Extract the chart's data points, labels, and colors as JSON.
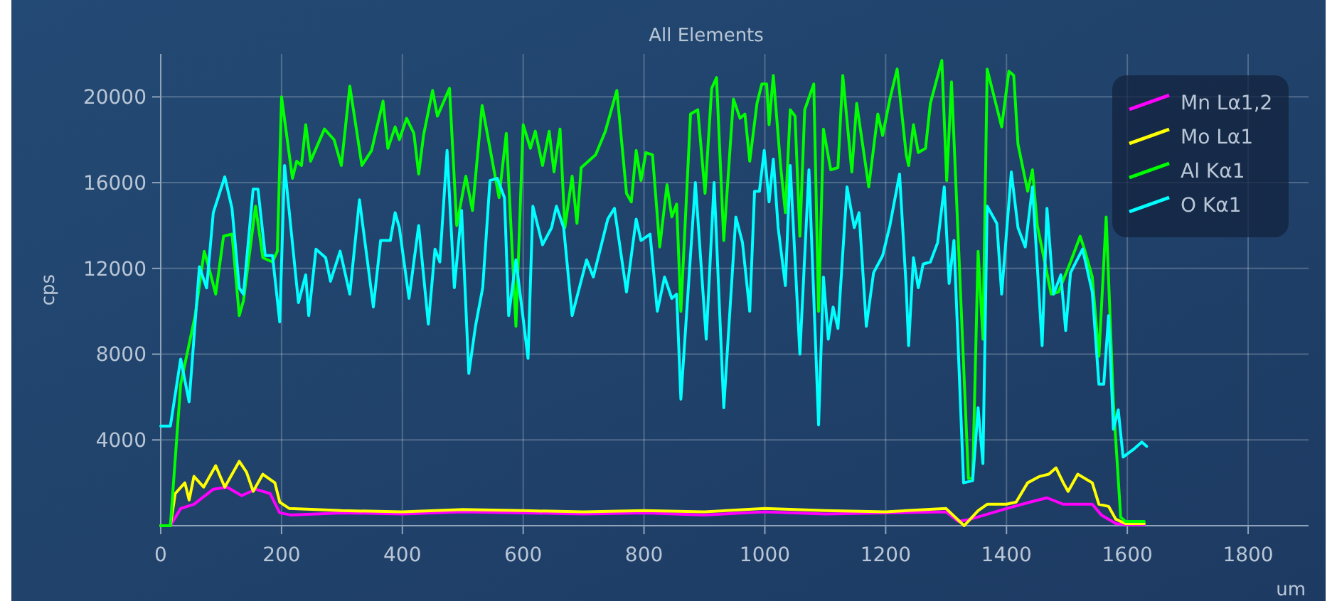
{
  "chart_data": {
    "type": "line",
    "title": "All Elements",
    "xlabel": "um",
    "ylabel": "cps",
    "xlim": [
      0,
      1900
    ],
    "xticks": [
      0,
      200,
      400,
      600,
      800,
      1000,
      1200,
      1400,
      1600,
      1800
    ],
    "ylim": [
      0,
      22000
    ],
    "yticks": [
      4000,
      8000,
      12000,
      16000,
      20000
    ],
    "grid": true,
    "legend": "top right",
    "marker": "none",
    "line_style": "solid",
    "series": [
      {
        "name": "Mn Lα1,2",
        "color": "#ff00ff",
        "x": [
          0,
          16,
          33,
          55,
          87,
          110,
          134,
          157,
          181,
          197,
          215,
          300,
          400,
          500,
          600,
          700,
          800,
          900,
          1000,
          1100,
          1200,
          1300,
          1320,
          1340,
          1376,
          1400,
          1439,
          1467,
          1494,
          1542,
          1557,
          1581,
          1600,
          1628
        ],
        "values": [
          0,
          0,
          800,
          1000,
          1700,
          1800,
          1400,
          1700,
          1500,
          600,
          500,
          600,
          550,
          650,
          600,
          550,
          600,
          500,
          650,
          550,
          600,
          650,
          200,
          300,
          600,
          800,
          1100,
          1300,
          1000,
          1000,
          500,
          100,
          50,
          50
        ]
      },
      {
        "name": "Mo Lα1",
        "color": "#ffff00",
        "x": [
          0,
          16,
          24,
          40,
          47,
          55,
          71,
          91,
          106,
          130,
          142,
          153,
          169,
          189,
          197,
          213,
          300,
          400,
          500,
          600,
          700,
          800,
          900,
          1000,
          1100,
          1200,
          1300,
          1315,
          1330,
          1353,
          1368,
          1400,
          1416,
          1435,
          1455,
          1470,
          1482,
          1494,
          1502,
          1518,
          1542,
          1553,
          1569,
          1581,
          1597,
          1628
        ],
        "values": [
          0,
          0,
          1500,
          2000,
          1200,
          2300,
          1800,
          2800,
          1800,
          3000,
          2500,
          1600,
          2400,
          2000,
          1100,
          800,
          700,
          650,
          750,
          700,
          650,
          700,
          650,
          800,
          700,
          650,
          800,
          400,
          0,
          700,
          1000,
          1000,
          1100,
          2000,
          2300,
          2400,
          2700,
          2000,
          1600,
          2400,
          2000,
          1000,
          900,
          300,
          100,
          100
        ]
      },
      {
        "name": "Al Kα1",
        "color": "#00ff00",
        "x": [
          0,
          16,
          33,
          57,
          72,
          80,
          91,
          104,
          118,
          130,
          137,
          157,
          169,
          185,
          193,
          200,
          218,
          225,
          233,
          240,
          248,
          271,
          287,
          299,
          313,
          333,
          349,
          368,
          376,
          388,
          395,
          407,
          419,
          427,
          435,
          450,
          458,
          478,
          490,
          505,
          516,
          532,
          560,
          572,
          588,
          600,
          612,
          620,
          632,
          643,
          651,
          661,
          669,
          681,
          689,
          696,
          720,
          736,
          755,
          771,
          779,
          787,
          795,
          803,
          814,
          826,
          838,
          846,
          854,
          861,
          877,
          889,
          901,
          912,
          920,
          932,
          948,
          959,
          967,
          975,
          987,
          995,
          1003,
          1007,
          1014,
          1026,
          1034,
          1042,
          1050,
          1058,
          1066,
          1081,
          1089,
          1097,
          1109,
          1121,
          1129,
          1144,
          1152,
          1172,
          1187,
          1195,
          1207,
          1219,
          1234,
          1238,
          1246,
          1254,
          1266,
          1274,
          1293,
          1301,
          1309,
          1321,
          1337,
          1344,
          1353,
          1361,
          1368,
          1392,
          1404,
          1412,
          1419,
          1435,
          1443,
          1451,
          1474,
          1486,
          1506,
          1522,
          1530,
          1542,
          1553,
          1565,
          1577,
          1589,
          1597,
          1628
        ],
        "values": [
          0,
          0,
          6600,
          9800,
          12800,
          12000,
          10800,
          13500,
          13600,
          9800,
          10500,
          14900,
          12500,
          12300,
          12800,
          20000,
          16200,
          17000,
          16800,
          18700,
          17000,
          18500,
          18000,
          16800,
          20500,
          16800,
          17500,
          19800,
          17600,
          18600,
          18000,
          19000,
          18300,
          16400,
          18200,
          20300,
          19100,
          20400,
          14000,
          16300,
          14700,
          19600,
          15300,
          18300,
          9300,
          18700,
          17600,
          18400,
          16800,
          18400,
          16500,
          18500,
          13900,
          16300,
          14100,
          16700,
          17300,
          18400,
          20300,
          15500,
          15100,
          17500,
          16100,
          17400,
          17300,
          13000,
          15900,
          14400,
          15000,
          10000,
          19200,
          19400,
          15500,
          20400,
          20900,
          13300,
          19900,
          19000,
          19200,
          17000,
          19700,
          20600,
          20600,
          18700,
          21000,
          16800,
          14600,
          19400,
          19100,
          13500,
          19400,
          20600,
          10000,
          18500,
          16600,
          16700,
          21000,
          16500,
          19700,
          15800,
          19200,
          18200,
          19900,
          21300,
          17300,
          16800,
          18700,
          17400,
          17600,
          19700,
          21700,
          16100,
          20700,
          12800,
          2200,
          2200,
          12800,
          8700,
          21300,
          18600,
          21200,
          21000,
          17800,
          15600,
          16600,
          14000,
          10800,
          10900,
          12300,
          13500,
          12800,
          11600,
          7900,
          14400,
          5700,
          400,
          200,
          200
        ]
      },
      {
        "name": "O Kα1",
        "color": "#00ffff",
        "x": [
          0,
          16,
          33,
          47,
          64,
          76,
          87,
          106,
          118,
          130,
          137,
          153,
          161,
          173,
          185,
          197,
          205,
          228,
          240,
          245,
          257,
          273,
          281,
          297,
          313,
          329,
          352,
          364,
          380,
          388,
          395,
          411,
          427,
          443,
          454,
          462,
          474,
          486,
          498,
          510,
          521,
          533,
          545,
          557,
          569,
          576,
          588,
          608,
          616,
          632,
          647,
          655,
          667,
          681,
          705,
          716,
          740,
          751,
          771,
          787,
          795,
          810,
          822,
          834,
          846,
          854,
          861,
          885,
          903,
          916,
          932,
          952,
          963,
          975,
          983,
          991,
          999,
          1007,
          1014,
          1022,
          1034,
          1042,
          1058,
          1073,
          1089,
          1097,
          1105,
          1113,
          1121,
          1136,
          1148,
          1156,
          1168,
          1180,
          1195,
          1207,
          1223,
          1234,
          1238,
          1246,
          1254,
          1262,
          1274,
          1286,
          1297,
          1305,
          1313,
          1329,
          1344,
          1353,
          1361,
          1368,
          1384,
          1392,
          1408,
          1419,
          1431,
          1443,
          1459,
          1467,
          1478,
          1490,
          1498,
          1506,
          1526,
          1542,
          1553,
          1561,
          1569,
          1577,
          1585,
          1593,
          1612,
          1624,
          1632
        ],
        "values": [
          4650,
          4650,
          7770,
          5780,
          12080,
          11090,
          14600,
          16270,
          14800,
          11090,
          10800,
          15700,
          15700,
          12600,
          12600,
          9500,
          16800,
          10400,
          11700,
          9800,
          12900,
          12500,
          11400,
          12800,
          10800,
          15200,
          10200,
          13300,
          13300,
          14600,
          13900,
          10600,
          14000,
          9400,
          12900,
          12300,
          17500,
          11100,
          14700,
          7100,
          9300,
          11100,
          16100,
          16200,
          15300,
          9800,
          12400,
          7800,
          14900,
          13100,
          13900,
          14900,
          13900,
          9800,
          12400,
          11600,
          14300,
          14800,
          10900,
          14300,
          13300,
          13600,
          10000,
          11600,
          10600,
          10800,
          5900,
          16000,
          8700,
          16000,
          5500,
          14400,
          13200,
          10000,
          15600,
          15600,
          17500,
          15100,
          17100,
          13900,
          11200,
          16800,
          8000,
          16600,
          4700,
          11600,
          8700,
          10200,
          9200,
          15800,
          13900,
          14600,
          9300,
          11800,
          12600,
          14000,
          16400,
          11100,
          8400,
          12500,
          11100,
          12200,
          12300,
          13200,
          15800,
          11300,
          13300,
          2000,
          2100,
          5500,
          2900,
          14900,
          14100,
          10800,
          16500,
          13900,
          13000,
          15800,
          8400,
          14800,
          10800,
          11700,
          9100,
          11800,
          12900,
          10900,
          6600,
          6600,
          9800,
          4500,
          5400,
          3200,
          3600,
          3900,
          3700
        ]
      }
    ]
  }
}
